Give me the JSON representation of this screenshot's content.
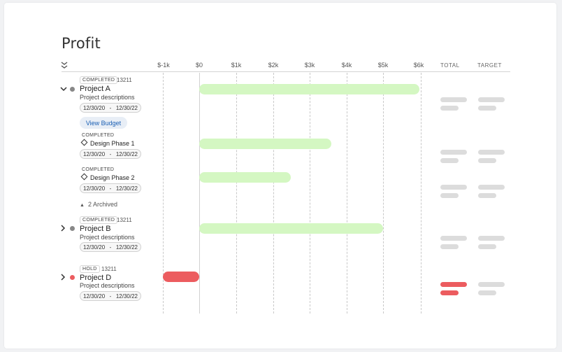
{
  "page": {
    "title": "Profit"
  },
  "header": {
    "axis_labels": [
      "$-1k",
      "$0",
      "$1k",
      "$2k",
      "$3k",
      "$4k",
      "$5k",
      "$6k"
    ],
    "total_label": "TOTAL",
    "target_label": "TARGET"
  },
  "rows": {
    "project_a": {
      "status": "COMPLETED",
      "id": "13211",
      "name": "Project A",
      "description": "Project descriptions",
      "date_start": "12/30/20",
      "date_sep": "-",
      "date_end": "12/30/22",
      "view_budget": "View Budget",
      "profit_k": 6.0,
      "status_color": "#888888"
    },
    "design_phase_1": {
      "status": "COMPLETED",
      "name": "Design Phase 1",
      "date_start": "12/30/20",
      "date_sep": "-",
      "date_end": "12/30/22",
      "profit_k": 3.6
    },
    "design_phase_2": {
      "status": "COMPLETED",
      "name": "Design Phase 2",
      "date_start": "12/30/20",
      "date_sep": "-",
      "date_end": "12/30/22",
      "profit_k": 2.5
    },
    "archived": {
      "label": "2 Archived"
    },
    "project_b": {
      "status": "COMPLETED",
      "id": "13211",
      "name": "Project B",
      "description": "Project descriptions",
      "date_start": "12/30/20",
      "date_sep": "-",
      "date_end": "12/30/22",
      "profit_k": 5.0,
      "status_color": "#888888"
    },
    "project_d": {
      "status": "HOLD",
      "id": "13211",
      "name": "Project D",
      "description": "Project descriptions",
      "date_start": "12/30/20",
      "date_sep": "-",
      "date_end": "12/30/22",
      "profit_k": -1.0,
      "status_color": "#ec5c5f"
    }
  },
  "colors": {
    "profit_bar": "#d4f7c2",
    "loss_bar": "#ec5c5f",
    "placeholder": "#dcdcdc",
    "link": "#1a5fb4"
  }
}
